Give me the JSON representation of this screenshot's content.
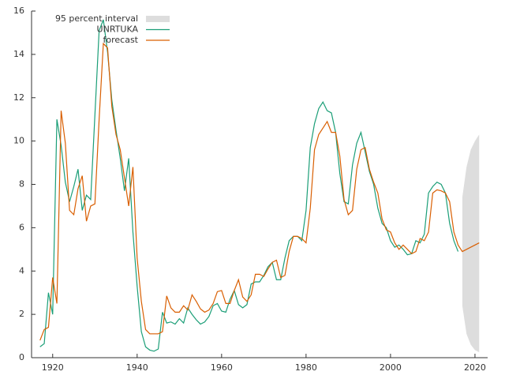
{
  "chart_data": {
    "type": "line",
    "x": [
      1917,
      1918,
      1919,
      1920,
      1921,
      1922,
      1923,
      1924,
      1925,
      1926,
      1927,
      1928,
      1929,
      1930,
      1931,
      1932,
      1933,
      1934,
      1935,
      1936,
      1937,
      1938,
      1939,
      1940,
      1941,
      1942,
      1943,
      1944,
      1945,
      1946,
      1947,
      1948,
      1949,
      1950,
      1951,
      1952,
      1953,
      1954,
      1955,
      1956,
      1957,
      1958,
      1959,
      1960,
      1961,
      1962,
      1963,
      1964,
      1965,
      1966,
      1967,
      1968,
      1969,
      1970,
      1971,
      1972,
      1973,
      1974,
      1975,
      1976,
      1977,
      1978,
      1979,
      1980,
      1981,
      1982,
      1983,
      1984,
      1985,
      1986,
      1987,
      1988,
      1989,
      1990,
      1991,
      1992,
      1993,
      1994,
      1995,
      1996,
      1997,
      1998,
      1999,
      2000,
      2001,
      2002,
      2003,
      2004,
      2005,
      2006,
      2007,
      2008,
      2009,
      2010,
      2011,
      2012,
      2013,
      2014,
      2015,
      2016,
      2017,
      2018,
      2019,
      2020,
      2021
    ],
    "interval": {
      "name": "95 percent interval",
      "color": "#dddddd",
      "x": [
        2017,
        2018,
        2019,
        2020,
        2021
      ],
      "lower": [
        2.4,
        1.1,
        0.6,
        0.35,
        0.25
      ],
      "upper": [
        7.4,
        8.8,
        9.6,
        10.0,
        10.3
      ]
    },
    "series": [
      {
        "name": "UNRTUKA",
        "color": "#1b9e77",
        "values": [
          0.5,
          0.65,
          3.0,
          2.0,
          11.0,
          9.8,
          8.1,
          7.2,
          7.9,
          8.7,
          6.8,
          7.5,
          7.3,
          11.2,
          15.1,
          15.6,
          14.1,
          11.9,
          10.5,
          9.2,
          7.7,
          9.2,
          5.8,
          3.3,
          1.2,
          0.5,
          0.35,
          0.3,
          0.4,
          2.1,
          1.6,
          1.65,
          1.55,
          1.8,
          1.6,
          2.3,
          2.0,
          1.75,
          1.55,
          1.65,
          1.9,
          2.4,
          2.5,
          2.15,
          2.1,
          2.7,
          3.1,
          2.45,
          2.3,
          2.45,
          3.4,
          3.5,
          3.5,
          3.8,
          4.2,
          4.4,
          3.6,
          3.6,
          4.6,
          5.4,
          5.6,
          5.6,
          5.4,
          6.8,
          9.7,
          10.8,
          11.5,
          11.8,
          11.4,
          11.3,
          10.4,
          8.5,
          7.2,
          7.1,
          8.9,
          9.9,
          10.4,
          9.5,
          8.6,
          8.0,
          6.9,
          6.2,
          6.0,
          5.4,
          5.1,
          5.2,
          5.0,
          4.75,
          4.8,
          5.4,
          5.3,
          5.7,
          7.6,
          7.9,
          8.1,
          8.0,
          7.6,
          6.2,
          5.4,
          4.9,
          null,
          null,
          null,
          null,
          null
        ]
      },
      {
        "name": "forecast",
        "color": "#d95f02",
        "values": [
          0.8,
          1.3,
          1.4,
          3.7,
          2.5,
          11.4,
          9.9,
          6.8,
          6.6,
          7.8,
          8.4,
          6.3,
          7.0,
          7.1,
          11.0,
          14.5,
          14.3,
          11.6,
          10.3,
          9.6,
          8.3,
          7.0,
          8.8,
          4.6,
          2.6,
          1.3,
          1.1,
          1.1,
          1.1,
          1.2,
          2.85,
          2.3,
          2.1,
          2.1,
          2.4,
          2.2,
          2.9,
          2.6,
          2.25,
          2.1,
          2.2,
          2.5,
          3.05,
          3.1,
          2.5,
          2.5,
          3.1,
          3.6,
          2.8,
          2.6,
          2.9,
          3.85,
          3.85,
          3.75,
          4.1,
          4.4,
          4.5,
          3.7,
          3.8,
          4.9,
          5.6,
          5.6,
          5.5,
          5.3,
          6.9,
          9.6,
          10.3,
          10.6,
          10.9,
          10.4,
          10.4,
          9.3,
          7.3,
          6.6,
          6.8,
          8.7,
          9.6,
          9.7,
          8.7,
          8.1,
          7.6,
          6.4,
          5.9,
          5.8,
          5.3,
          5.0,
          5.2,
          5.0,
          4.8,
          4.9,
          5.5,
          5.4,
          5.8,
          7.6,
          7.75,
          7.7,
          7.6,
          7.2,
          5.8,
          5.2,
          4.9,
          5.0,
          5.1,
          5.2,
          5.3
        ]
      }
    ],
    "xlim": [
      1915,
      2023
    ],
    "ylim": [
      0,
      16
    ],
    "xticks": [
      1920,
      1940,
      1960,
      1980,
      2000,
      2020
    ],
    "yticks": [
      0,
      2,
      4,
      6,
      8,
      10,
      12,
      14,
      16
    ]
  }
}
